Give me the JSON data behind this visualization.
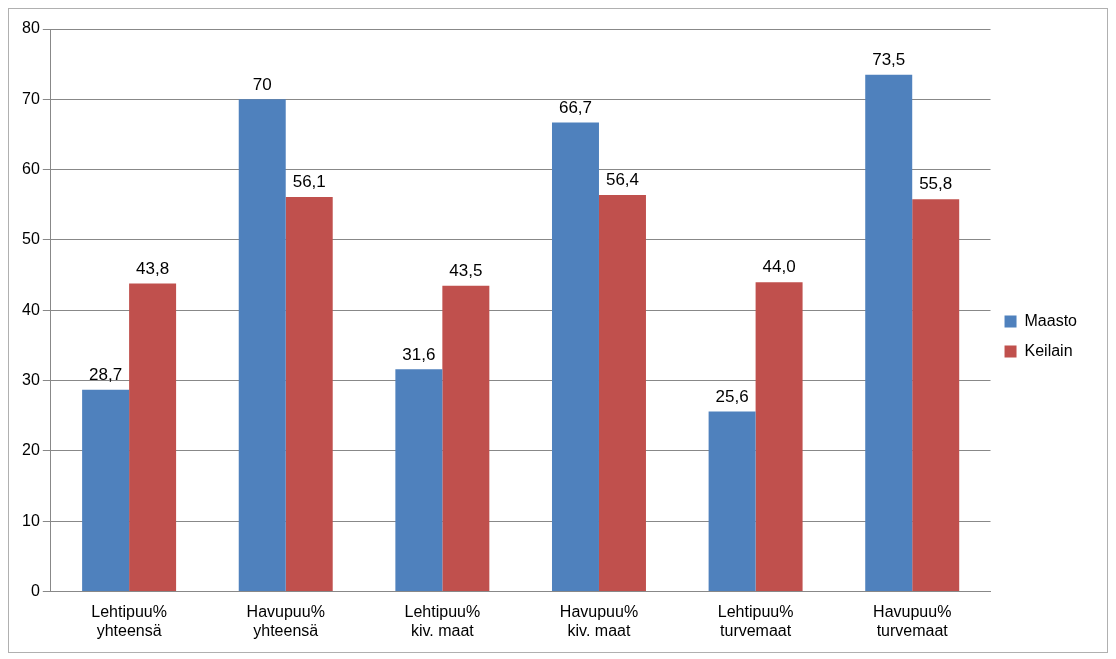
{
  "chart_data": {
    "type": "bar",
    "categories": [
      "Lehtipuu% yhteensä",
      "Havupuu% yhteensä",
      "Lehtipuu% kiv. maat",
      "Havupuu% kiv. maat",
      "Lehtipuu% turvemaat",
      "Havupuu% turvemaat"
    ],
    "series": [
      {
        "name": "Maasto",
        "color": "#4f81bd",
        "values": [
          28.7,
          70,
          31.6,
          66.7,
          25.6,
          73.5
        ],
        "value_labels": [
          "28,7",
          "70",
          "31,6",
          "66,7",
          "25,6",
          "73,5"
        ]
      },
      {
        "name": "Keilain",
        "color": "#c0504d",
        "values": [
          43.8,
          56.1,
          43.5,
          56.4,
          44.0,
          55.8
        ],
        "value_labels": [
          "43,8",
          "56,1",
          "43,5",
          "56,4",
          "44,0",
          "55,8"
        ]
      }
    ],
    "ylim": [
      0,
      80
    ],
    "yticks": [
      0,
      10,
      20,
      30,
      40,
      50,
      60,
      70,
      80
    ],
    "grid": "y",
    "legend": "right"
  }
}
